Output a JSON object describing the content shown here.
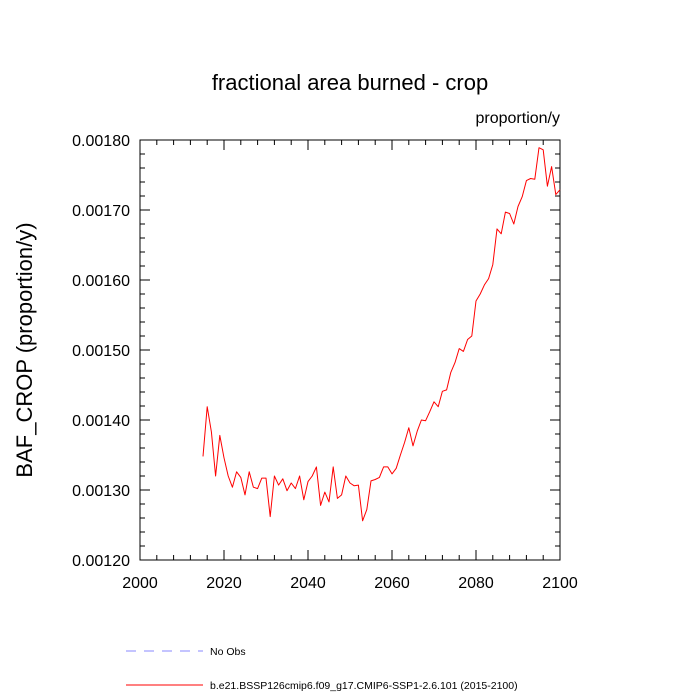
{
  "chart_data": {
    "type": "line",
    "title": "fractional area burned - crop",
    "units": "proportion/y",
    "xlabel": "",
    "ylabel": "BAF_CROP  (proportion/y)",
    "xlim": [
      2000,
      2100
    ],
    "ylim": [
      0.0012,
      0.0018
    ],
    "x_ticks": [
      "2000",
      "2020",
      "2040",
      "2060",
      "2080",
      "2100"
    ],
    "y_ticks": [
      "0.00120",
      "0.00130",
      "0.00140",
      "0.00150",
      "0.00160",
      "0.00170",
      "0.00180"
    ],
    "grid": false,
    "legend": {
      "placement": "bottom",
      "entries": [
        {
          "name": "No Obs",
          "color": "#8888ff",
          "style": "dashed"
        },
        {
          "name": "b.e21.BSSP126cmip6.f09_g17.CMIP6-SSP1-2.6.101 (2015-2100)",
          "color": "#ff0000",
          "style": "solid"
        }
      ]
    },
    "series": [
      {
        "name": "b.e21.BSSP126cmip6.f09_g17.CMIP6-SSP1-2.6.101 (2015-2100)",
        "color": "#ff0000",
        "x": [
          2015,
          2016,
          2017,
          2018,
          2019,
          2020,
          2021,
          2022,
          2023,
          2024,
          2025,
          2026,
          2027,
          2028,
          2029,
          2030,
          2031,
          2032,
          2033,
          2034,
          2035,
          2036,
          2037,
          2038,
          2039,
          2040,
          2041,
          2042,
          2043,
          2044,
          2045,
          2046,
          2047,
          2048,
          2049,
          2050,
          2051,
          2052,
          2053,
          2054,
          2055,
          2056,
          2057,
          2058,
          2059,
          2060,
          2061,
          2062,
          2063,
          2064,
          2065,
          2066,
          2067,
          2068,
          2069,
          2070,
          2071,
          2072,
          2073,
          2074,
          2075,
          2076,
          2077,
          2078,
          2079,
          2080,
          2081,
          2082,
          2083,
          2084,
          2085,
          2086,
          2087,
          2088,
          2089,
          2090,
          2091,
          2092,
          2093,
          2094,
          2095,
          2096,
          2097,
          2098,
          2099,
          2100
        ],
        "y": [
          0.001348,
          0.001419,
          0.001383,
          0.00132,
          0.001378,
          0.001346,
          0.00132,
          0.001304,
          0.001326,
          0.001318,
          0.001293,
          0.001326,
          0.001304,
          0.001302,
          0.001317,
          0.001317,
          0.001262,
          0.00132,
          0.001307,
          0.001316,
          0.001299,
          0.00131,
          0.001302,
          0.00132,
          0.001286,
          0.001312,
          0.00132,
          0.001333,
          0.001278,
          0.001297,
          0.001283,
          0.001333,
          0.001288,
          0.001293,
          0.00132,
          0.00131,
          0.001306,
          0.001307,
          0.001256,
          0.001272,
          0.001313,
          0.001315,
          0.001318,
          0.001333,
          0.001333,
          0.001323,
          0.001331,
          0.00135,
          0.001368,
          0.001389,
          0.001363,
          0.001384,
          0.0014,
          0.001399,
          0.001412,
          0.001426,
          0.001419,
          0.001441,
          0.001443,
          0.001468,
          0.001482,
          0.001502,
          0.001498,
          0.001515,
          0.00152,
          0.00157,
          0.00158,
          0.001593,
          0.001602,
          0.001622,
          0.001673,
          0.001666,
          0.001697,
          0.001695,
          0.00168,
          0.001705,
          0.001719,
          0.001742,
          0.001745,
          0.001744,
          0.001789,
          0.001786,
          0.001734,
          0.001762,
          0.001722,
          0.001729
        ]
      }
    ]
  }
}
